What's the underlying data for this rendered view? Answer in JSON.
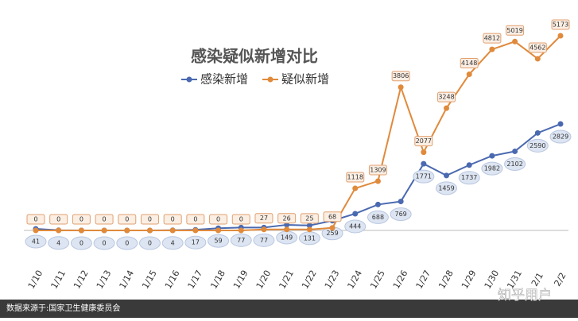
{
  "chart_data": {
    "type": "line",
    "title": "感染疑似新增对比",
    "categories": [
      "1/10",
      "1/11",
      "1/12",
      "1/13",
      "1/14",
      "1/15",
      "1/16",
      "1/17",
      "1/18",
      "1/19",
      "1/20",
      "1/21",
      "1/22",
      "1/23",
      "1/24",
      "1/25",
      "1/26",
      "1/27",
      "1/28",
      "1/29",
      "1/30",
      "1/31",
      "2/1",
      "2/2"
    ],
    "series": [
      {
        "name": "感染新增",
        "color": "#4a69b0",
        "values": [
          41,
          4,
          0,
          0,
          0,
          0,
          4,
          17,
          59,
          77,
          77,
          149,
          131,
          259,
          444,
          688,
          769,
          1771,
          1459,
          1737,
          1982,
          2102,
          2590,
          2829
        ]
      },
      {
        "name": "疑似新增",
        "color": "#e08a3c",
        "values": [
          0,
          0,
          0,
          0,
          0,
          0,
          0,
          0,
          0,
          0,
          27,
          26,
          25,
          68,
          1118,
          1309,
          3806,
          2077,
          3248,
          4148,
          4812,
          5019,
          4562,
          5173
        ]
      }
    ],
    "source": "数据来源于:国家卫生健康委员会",
    "watermark": "知乎用户"
  }
}
